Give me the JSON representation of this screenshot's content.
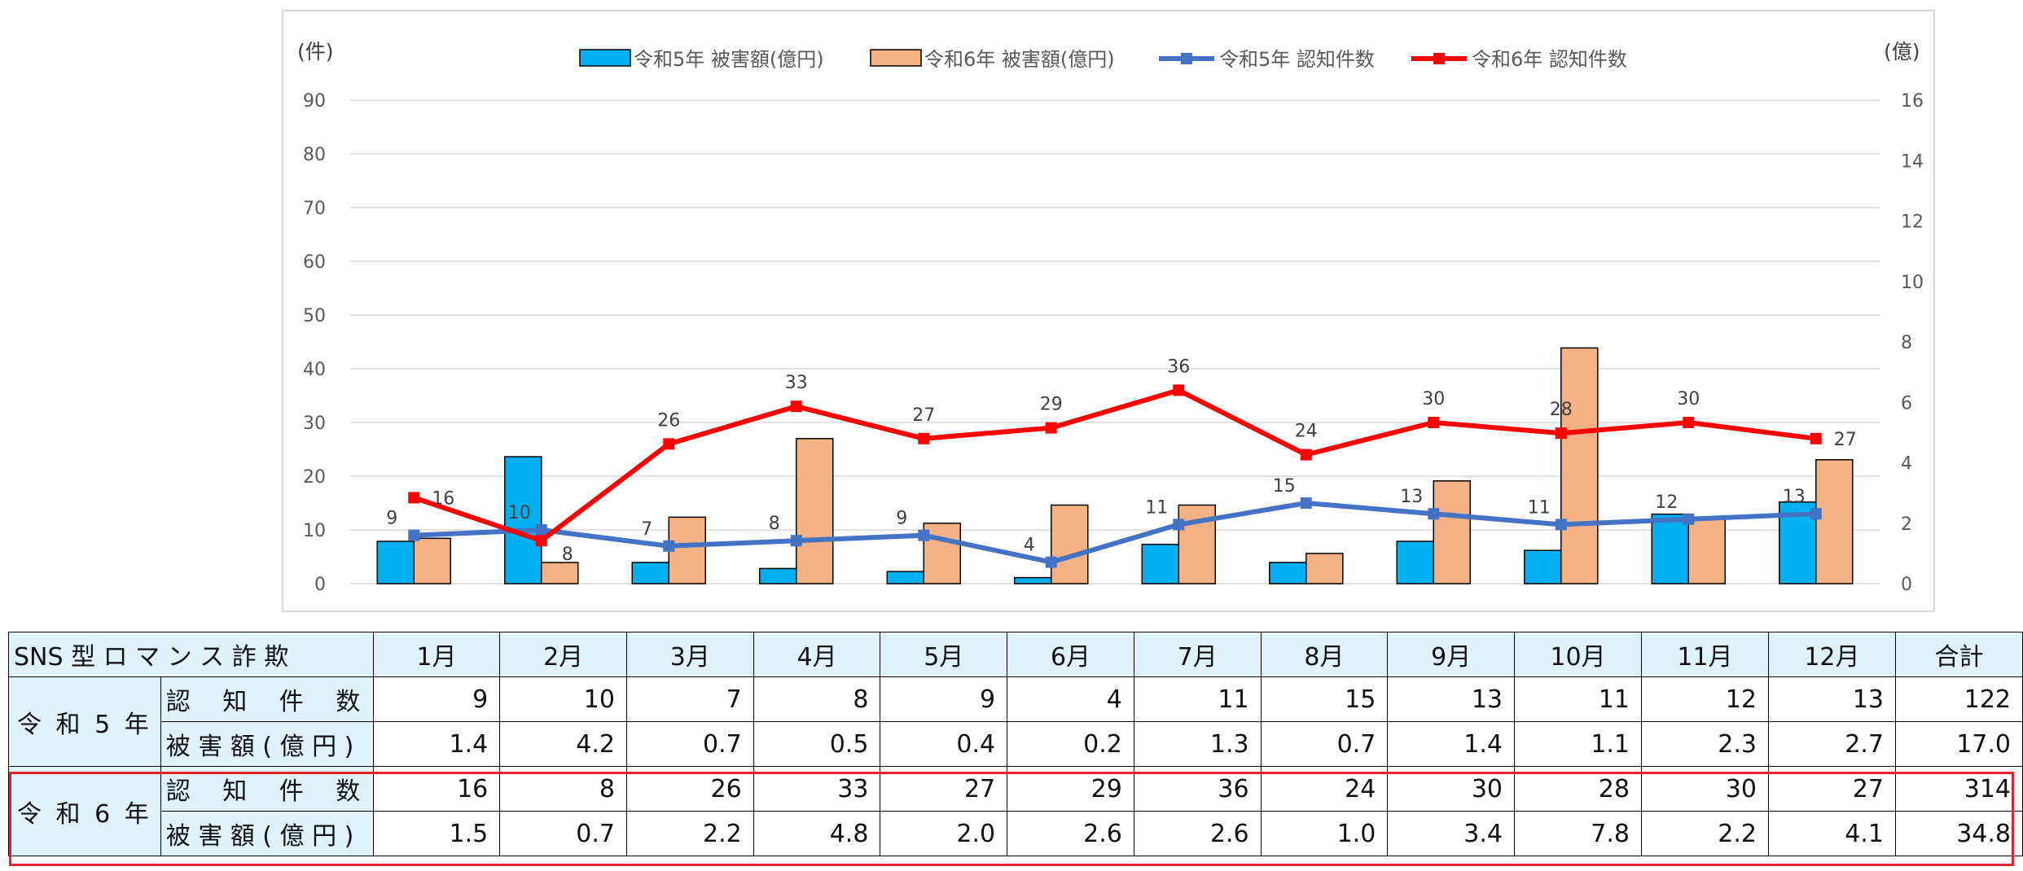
{
  "chart_data": {
    "type": "bar",
    "categories": [
      "1月",
      "2月",
      "3月",
      "4月",
      "5月",
      "6月",
      "7月",
      "8月",
      "9月",
      "10月",
      "11月",
      "12月"
    ],
    "left_axis": {
      "unit": "(件)",
      "ticks": [
        "0",
        "10",
        "20",
        "30",
        "40",
        "50",
        "60",
        "70",
        "80",
        "90"
      ],
      "range": [
        0,
        90
      ]
    },
    "right_axis": {
      "unit": "(億)",
      "ticks": [
        "0",
        "2",
        "4",
        "6",
        "8",
        "10",
        "12",
        "14",
        "16"
      ],
      "range": [
        0,
        16
      ]
    },
    "series": [
      {
        "name": "令和5年 被害額(億円)",
        "kind": "bar",
        "axis": "right",
        "color": "#00b0f0",
        "values": [
          1.4,
          4.2,
          0.7,
          0.5,
          0.4,
          0.2,
          1.3,
          0.7,
          1.4,
          1.1,
          2.3,
          2.7
        ]
      },
      {
        "name": "令和6年 被害額(億円)",
        "kind": "bar",
        "axis": "right",
        "color": "#f4b183",
        "values": [
          1.5,
          0.7,
          2.2,
          4.8,
          2.0,
          2.6,
          2.6,
          1.0,
          3.4,
          7.8,
          2.2,
          4.1
        ]
      },
      {
        "name": "令和5年 認知件数",
        "kind": "line",
        "axis": "left",
        "color": "#4472c4",
        "values": [
          9,
          10,
          7,
          8,
          9,
          4,
          11,
          15,
          13,
          11,
          12,
          13
        ]
      },
      {
        "name": "令和6年 認知件数",
        "kind": "line",
        "axis": "left",
        "color": "#ff0000",
        "values": [
          16,
          8,
          26,
          33,
          27,
          29,
          36,
          24,
          30,
          28,
          30,
          27
        ]
      }
    ],
    "grid": true,
    "legend_position": "top"
  },
  "table": {
    "title": "SNS 型 ロ マ ン ス 詐 欺",
    "columns": [
      "1月",
      "2月",
      "3月",
      "4月",
      "5月",
      "6月",
      "7月",
      "8月",
      "9月",
      "10月",
      "11月",
      "12月",
      "合計"
    ],
    "groups": [
      {
        "year": "令 和 5 年",
        "rows": [
          {
            "label": "認　 知　 件　 数",
            "values": [
              "9",
              "10",
              "7",
              "8",
              "9",
              "4",
              "11",
              "15",
              "13",
              "11",
              "12",
              "13",
              "122"
            ]
          },
          {
            "label": "被 害 額 ( 億 円 )",
            "values": [
              "1.4",
              "4.2",
              "0.7",
              "0.5",
              "0.4",
              "0.2",
              "1.3",
              "0.7",
              "1.4",
              "1.1",
              "2.3",
              "2.7",
              "17.0"
            ]
          }
        ]
      },
      {
        "year": "令 和 6 年",
        "rows": [
          {
            "label": "認　 知　 件　 数",
            "values": [
              "16",
              "8",
              "26",
              "33",
              "27",
              "29",
              "36",
              "24",
              "30",
              "28",
              "30",
              "27",
              "314"
            ]
          },
          {
            "label": "被 害 額 ( 億 円 )",
            "values": [
              "1.5",
              "0.7",
              "2.2",
              "4.8",
              "2.0",
              "2.6",
              "2.6",
              "1.0",
              "3.4",
              "7.8",
              "2.2",
              "4.1",
              "34.8"
            ]
          }
        ]
      }
    ]
  }
}
